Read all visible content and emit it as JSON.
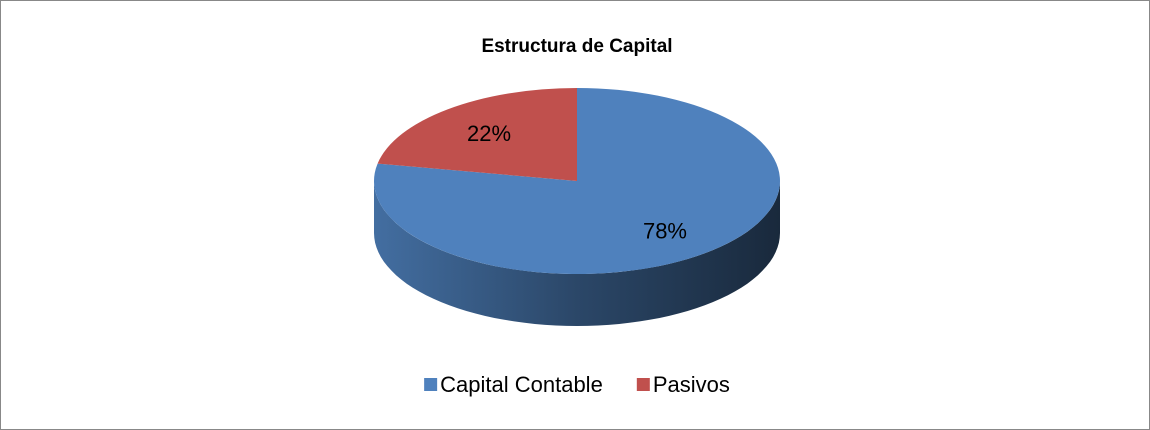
{
  "chart_data": {
    "type": "pie",
    "title": "Estructura de Capital",
    "categories": [
      "Capital Contable",
      "Pasivos"
    ],
    "values": [
      78,
      22
    ],
    "value_labels": [
      "78%",
      "22%"
    ],
    "colors": [
      "#4f81bd",
      "#c0504d"
    ],
    "legend": "bottom",
    "3d": true
  }
}
